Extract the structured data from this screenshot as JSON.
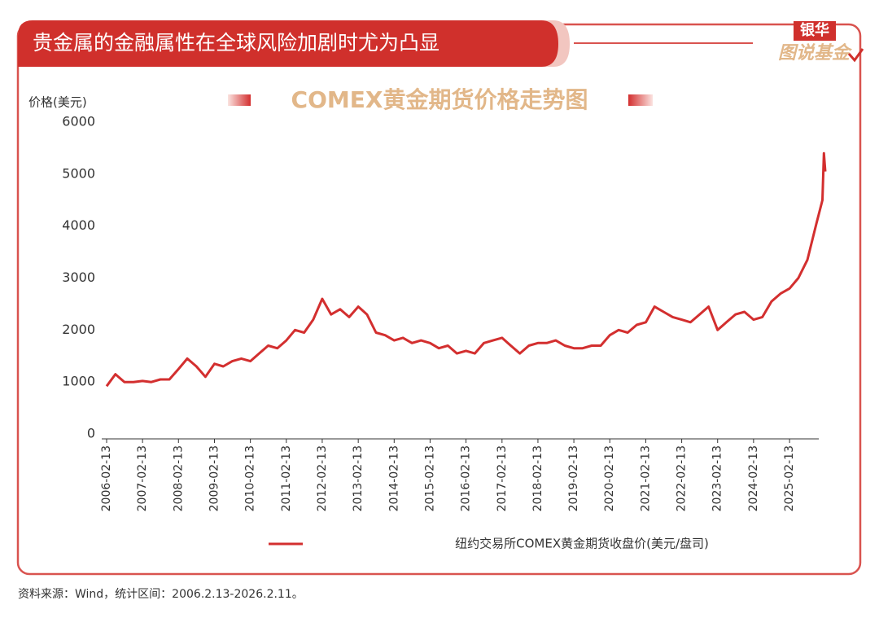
{
  "header": {
    "title": "贵金属的金融属性在全球风险加剧时尤为凸显",
    "logo_top": "银华",
    "logo_bottom": "图说基金"
  },
  "chart_data": {
    "type": "line",
    "title": "COMEX黄金期货价格走势图",
    "y_label": "价格(美元)",
    "x": [
      "2006-02-13",
      "2006-05-13",
      "2006-08-13",
      "2006-11-13",
      "2007-02-13",
      "2007-05-13",
      "2007-08-13",
      "2007-11-13",
      "2008-02-13",
      "2008-05-13",
      "2008-08-13",
      "2008-11-13",
      "2009-02-13",
      "2009-05-13",
      "2009-08-13",
      "2009-11-13",
      "2010-02-13",
      "2010-05-13",
      "2010-08-13",
      "2010-11-13",
      "2011-02-13",
      "2011-05-13",
      "2011-08-13",
      "2011-11-13",
      "2012-02-13",
      "2012-05-13",
      "2012-08-13",
      "2012-11-13",
      "2013-02-13",
      "2013-05-13",
      "2013-08-13",
      "2013-11-13",
      "2014-02-13",
      "2014-05-13",
      "2014-08-13",
      "2014-11-13",
      "2015-02-13",
      "2015-05-13",
      "2015-08-13",
      "2015-11-13",
      "2016-02-13",
      "2016-05-13",
      "2016-08-13",
      "2016-11-13",
      "2017-02-13",
      "2017-05-13",
      "2017-08-13",
      "2017-11-13",
      "2018-02-13",
      "2018-05-13",
      "2018-08-13",
      "2018-11-13",
      "2019-02-13",
      "2019-05-13",
      "2019-08-13",
      "2019-11-13",
      "2020-02-13",
      "2020-05-13",
      "2020-08-13",
      "2020-11-13",
      "2021-02-13",
      "2021-05-13",
      "2021-08-13",
      "2021-11-13",
      "2022-02-13",
      "2022-05-13",
      "2022-08-13",
      "2022-11-13",
      "2023-02-13",
      "2023-05-13",
      "2023-08-13",
      "2023-11-13",
      "2024-02-13",
      "2024-05-13",
      "2024-08-13",
      "2024-11-13",
      "2025-02-13",
      "2025-05-13",
      "2025-08-13",
      "2025-11-13",
      "2026-01-13",
      "2026-01-28",
      "2026-02-11"
    ],
    "series": [
      {
        "name": "纽约交易所COMEX黄金期货收盘价(美元/盘司)",
        "color": "#d32f2f",
        "values": [
          920,
          1150,
          1000,
          1000,
          1020,
          1000,
          1050,
          1050,
          1250,
          1450,
          1300,
          1100,
          1350,
          1300,
          1400,
          1450,
          1400,
          1550,
          1700,
          1650,
          1800,
          2000,
          1950,
          2200,
          2600,
          2300,
          2400,
          2250,
          2450,
          2300,
          1950,
          1900,
          1800,
          1850,
          1750,
          1800,
          1750,
          1650,
          1700,
          1550,
          1600,
          1550,
          1750,
          1800,
          1850,
          1700,
          1550,
          1700,
          1750,
          1750,
          1800,
          1700,
          1650,
          1650,
          1700,
          1700,
          1900,
          2000,
          1950,
          2100,
          2150,
          2450,
          2350,
          2250,
          2200,
          2150,
          2300,
          2450,
          2000,
          2150,
          2300,
          2350,
          2200,
          2250,
          2550,
          2700,
          2800,
          3000,
          3350,
          4050,
          4500,
          5400,
          5050
        ]
      }
    ],
    "xlim": [
      "2006-02-13",
      "2026-02-11"
    ],
    "xticks": [
      "2006-02-13",
      "2007-02-13",
      "2008-02-13",
      "2009-02-13",
      "2010-02-13",
      "2011-02-13",
      "2012-02-13",
      "2013-02-13",
      "2014-02-13",
      "2015-02-13",
      "2016-02-13",
      "2017-02-13",
      "2018-02-13",
      "2019-02-13",
      "2020-02-13",
      "2021-02-13",
      "2022-02-13",
      "2023-02-13",
      "2024-02-13",
      "2025-02-13"
    ],
    "ylim": [
      0,
      6000
    ],
    "yticks": [
      0,
      1000,
      2000,
      3000,
      4000,
      5000,
      6000
    ]
  },
  "footer": {
    "source": "资料来源：Wind，统计区间：2006.2.13-2026.2.11。"
  }
}
